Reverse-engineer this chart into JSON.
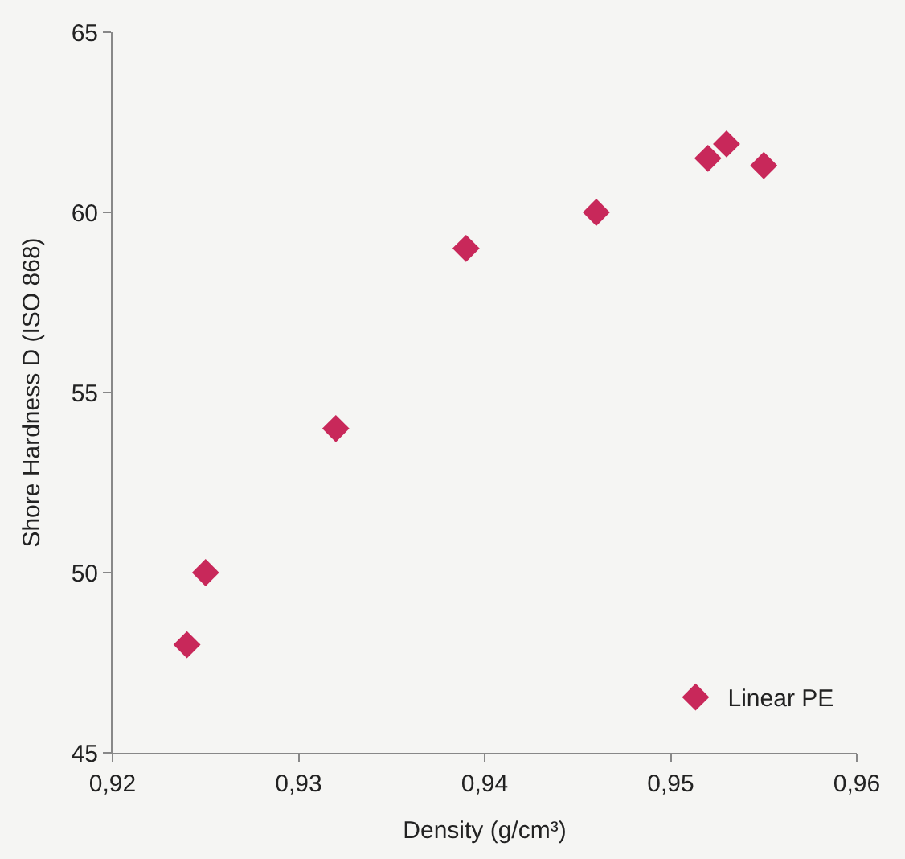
{
  "chart_data": {
    "type": "scatter",
    "xlabel": "Density (g/cm³)",
    "ylabel": "Shore Hardness D (ISO 868)",
    "xlim": [
      0.92,
      0.96
    ],
    "xticks": [
      {
        "value": 0.92,
        "label": "0,92"
      },
      {
        "value": 0.93,
        "label": "0,93"
      },
      {
        "value": 0.94,
        "label": "0,94"
      },
      {
        "value": 0.95,
        "label": "0,95"
      },
      {
        "value": 0.96,
        "label": "0,96"
      }
    ],
    "ylim": [
      45,
      65
    ],
    "yticks": [
      45,
      50,
      55,
      60,
      65
    ],
    "grid": false,
    "legend": "bottom right",
    "marker": "diamond",
    "series": [
      {
        "name": "Linear PE",
        "color": "#c8285a",
        "x": [
          0.924,
          0.925,
          0.932,
          0.939,
          0.946,
          0.952,
          0.953,
          0.955
        ],
        "values": [
          48,
          50,
          54,
          59,
          60,
          61.5,
          61.9,
          61.3
        ]
      }
    ]
  }
}
